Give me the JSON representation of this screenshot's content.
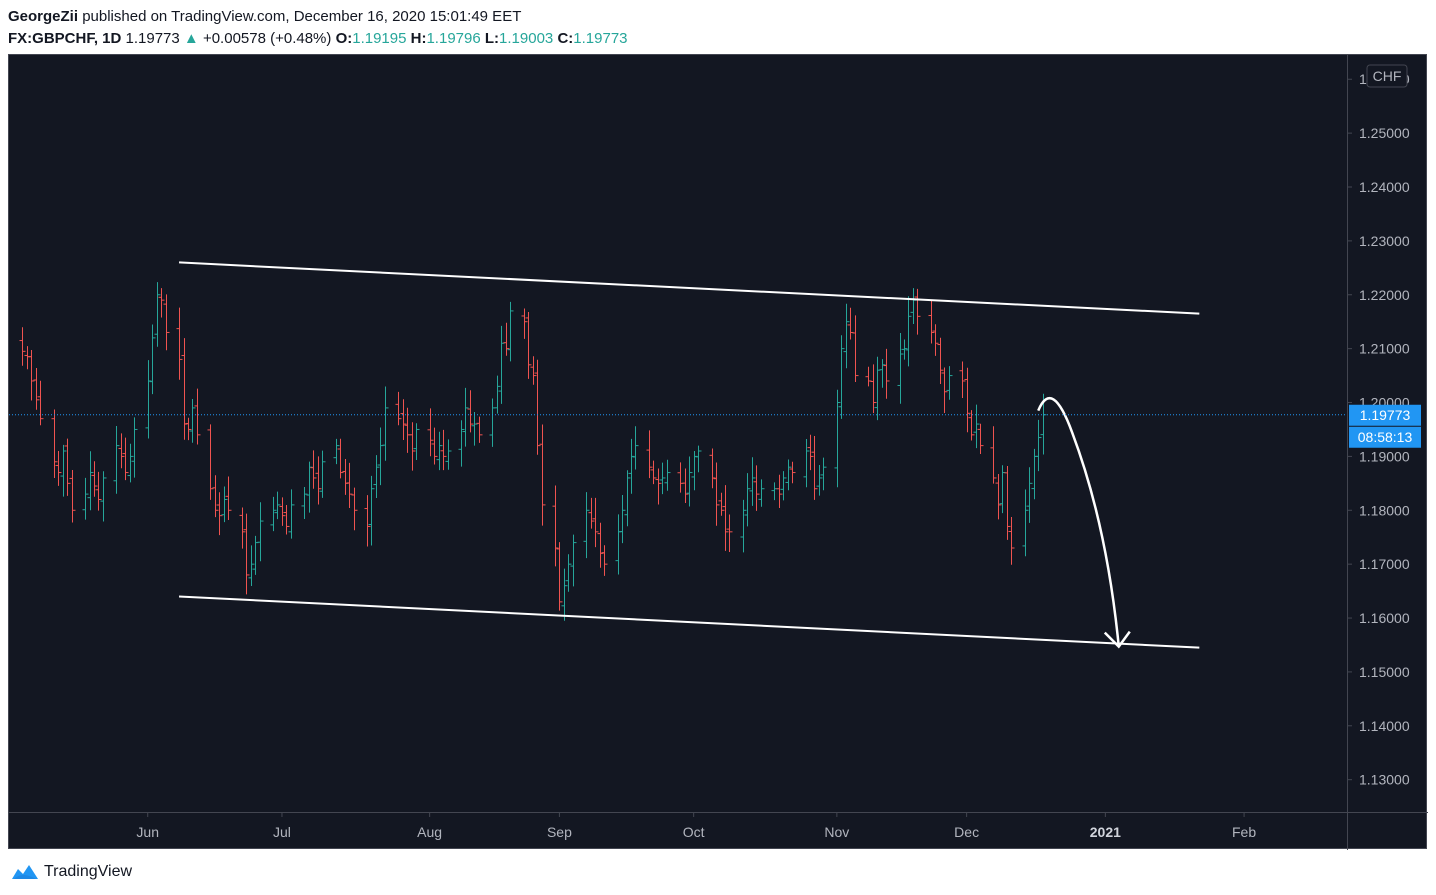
{
  "header": {
    "author": "GeorgeZii",
    "published_text": "published on TradingView.com, December 16, 2020 15:01:49 EET",
    "symbol": "FX:GBPCHF, 1D",
    "last": "1.19773",
    "change": "+0.00578 (+0.48%)",
    "open_label": "O:",
    "open": "1.19195",
    "high_label": "H:",
    "high": "1.19796",
    "low_label": "L:",
    "low": "1.19003",
    "close_label": "C:",
    "close": "1.19773"
  },
  "footer": {
    "brand": "TradingView"
  },
  "colors": {
    "background": "#131722",
    "up": "#26a69a",
    "down": "#ef5350",
    "price_badge": "#2196f3",
    "drawing": "#ffffff"
  },
  "chart_data": {
    "type": "ohlc",
    "title": "",
    "currency_label": "CHF",
    "last_price_label": "1.19773",
    "countdown_label": "08:58:13",
    "last_price": 1.19773,
    "ylim": [
      1.124,
      1.2645
    ],
    "y_ticks": [
      "1.13000",
      "1.14000",
      "1.15000",
      "1.16000",
      "1.17000",
      "1.18000",
      "1.19000",
      "1.20000",
      "1.21000",
      "1.22000",
      "1.23000",
      "1.24000",
      "1.25000",
      "1.26000"
    ],
    "x_ticks": [
      {
        "label": "Jun",
        "date": "2020-06-01",
        "bold": false
      },
      {
        "label": "Jul",
        "date": "2020-07-01",
        "bold": false
      },
      {
        "label": "Aug",
        "date": "2020-08-03",
        "bold": false
      },
      {
        "label": "Sep",
        "date": "2020-09-01",
        "bold": false
      },
      {
        "label": "Oct",
        "date": "2020-10-01",
        "bold": false
      },
      {
        "label": "Nov",
        "date": "2020-11-02",
        "bold": false
      },
      {
        "label": "Dec",
        "date": "2020-12-01",
        "bold": false
      },
      {
        "label": "2021",
        "date": "2021-01-01",
        "bold": true
      },
      {
        "label": "Feb",
        "date": "2021-02-01",
        "bold": false
      }
    ],
    "bars_start_date": "2020-05-04",
    "bars_close": [
      1.2095,
      1.2085,
      1.204,
      1.2005,
      1.197,
      1.189,
      1.187,
      1.191,
      1.185,
      1.18,
      1.183,
      1.187,
      1.1845,
      1.182,
      1.186,
      1.192,
      1.19,
      1.187,
      1.19,
      1.195,
      1.204,
      1.212,
      1.22,
      1.219,
      1.213,
      1.208,
      1.196,
      1.195,
      1.199,
      1.194,
      1.184,
      1.18,
      1.179,
      1.182,
      1.18,
      1.176,
      1.168,
      1.17,
      1.174,
      1.178,
      1.18,
      1.181,
      1.179,
      1.177,
      1.181,
      1.183,
      1.188,
      1.186,
      1.184,
      1.189,
      1.192,
      1.187,
      1.185,
      1.183,
      1.18,
      1.177,
      1.184,
      1.188,
      1.192,
      1.199,
      1.197,
      1.196,
      1.194,
      1.191,
      1.195,
      1.193,
      1.19,
      1.192,
      1.19,
      1.191,
      1.195,
      1.199,
      1.196,
      1.196,
      1.194,
      1.199,
      1.203,
      1.211,
      1.21,
      1.217,
      1.215,
      1.207,
      1.205,
      1.192,
      1.181,
      1.173,
      1.163,
      1.166,
      1.17,
      1.174,
      1.18,
      1.178,
      1.176,
      1.172,
      1.17,
      1.176,
      1.18,
      1.186,
      1.19,
      1.192,
      1.188,
      1.186,
      1.185,
      1.186,
      1.187,
      1.185,
      1.183,
      1.187,
      1.19,
      1.191,
      1.186,
      1.181,
      1.18,
      1.176,
      1.176,
      1.18,
      1.184,
      1.186,
      1.183,
      1.184,
      1.184,
      1.183,
      1.186,
      1.188,
      1.187,
      1.191,
      1.19,
      1.184,
      1.186,
      1.188,
      1.2,
      1.21,
      1.215,
      1.213,
      1.205,
      1.204,
      1.2,
      1.206,
      1.207,
      1.204,
      1.209,
      1.21,
      1.216,
      1.219,
      1.216,
      1.213,
      1.211,
      1.206,
      1.202,
      1.205,
      1.204,
      1.198,
      1.194,
      1.196,
      1.192,
      1.186,
      1.181,
      1.187,
      1.177,
      1.173,
      1.18,
      1.185,
      1.19,
      1.1935,
      1.19773
    ],
    "trend_channel": {
      "upper": [
        [
          "2020-06-08",
          1.226
        ],
        [
          "2021-01-22",
          1.2165
        ]
      ],
      "lower": [
        [
          "2020-06-08",
          1.164
        ],
        [
          "2021-01-22",
          1.1545
        ]
      ]
    },
    "projection_arrow": {
      "from": [
        "2020-12-17",
        1.1985
      ],
      "peak": [
        "2020-12-19",
        1.2
      ],
      "to": [
        "2021-01-04",
        1.1547
      ]
    }
  }
}
